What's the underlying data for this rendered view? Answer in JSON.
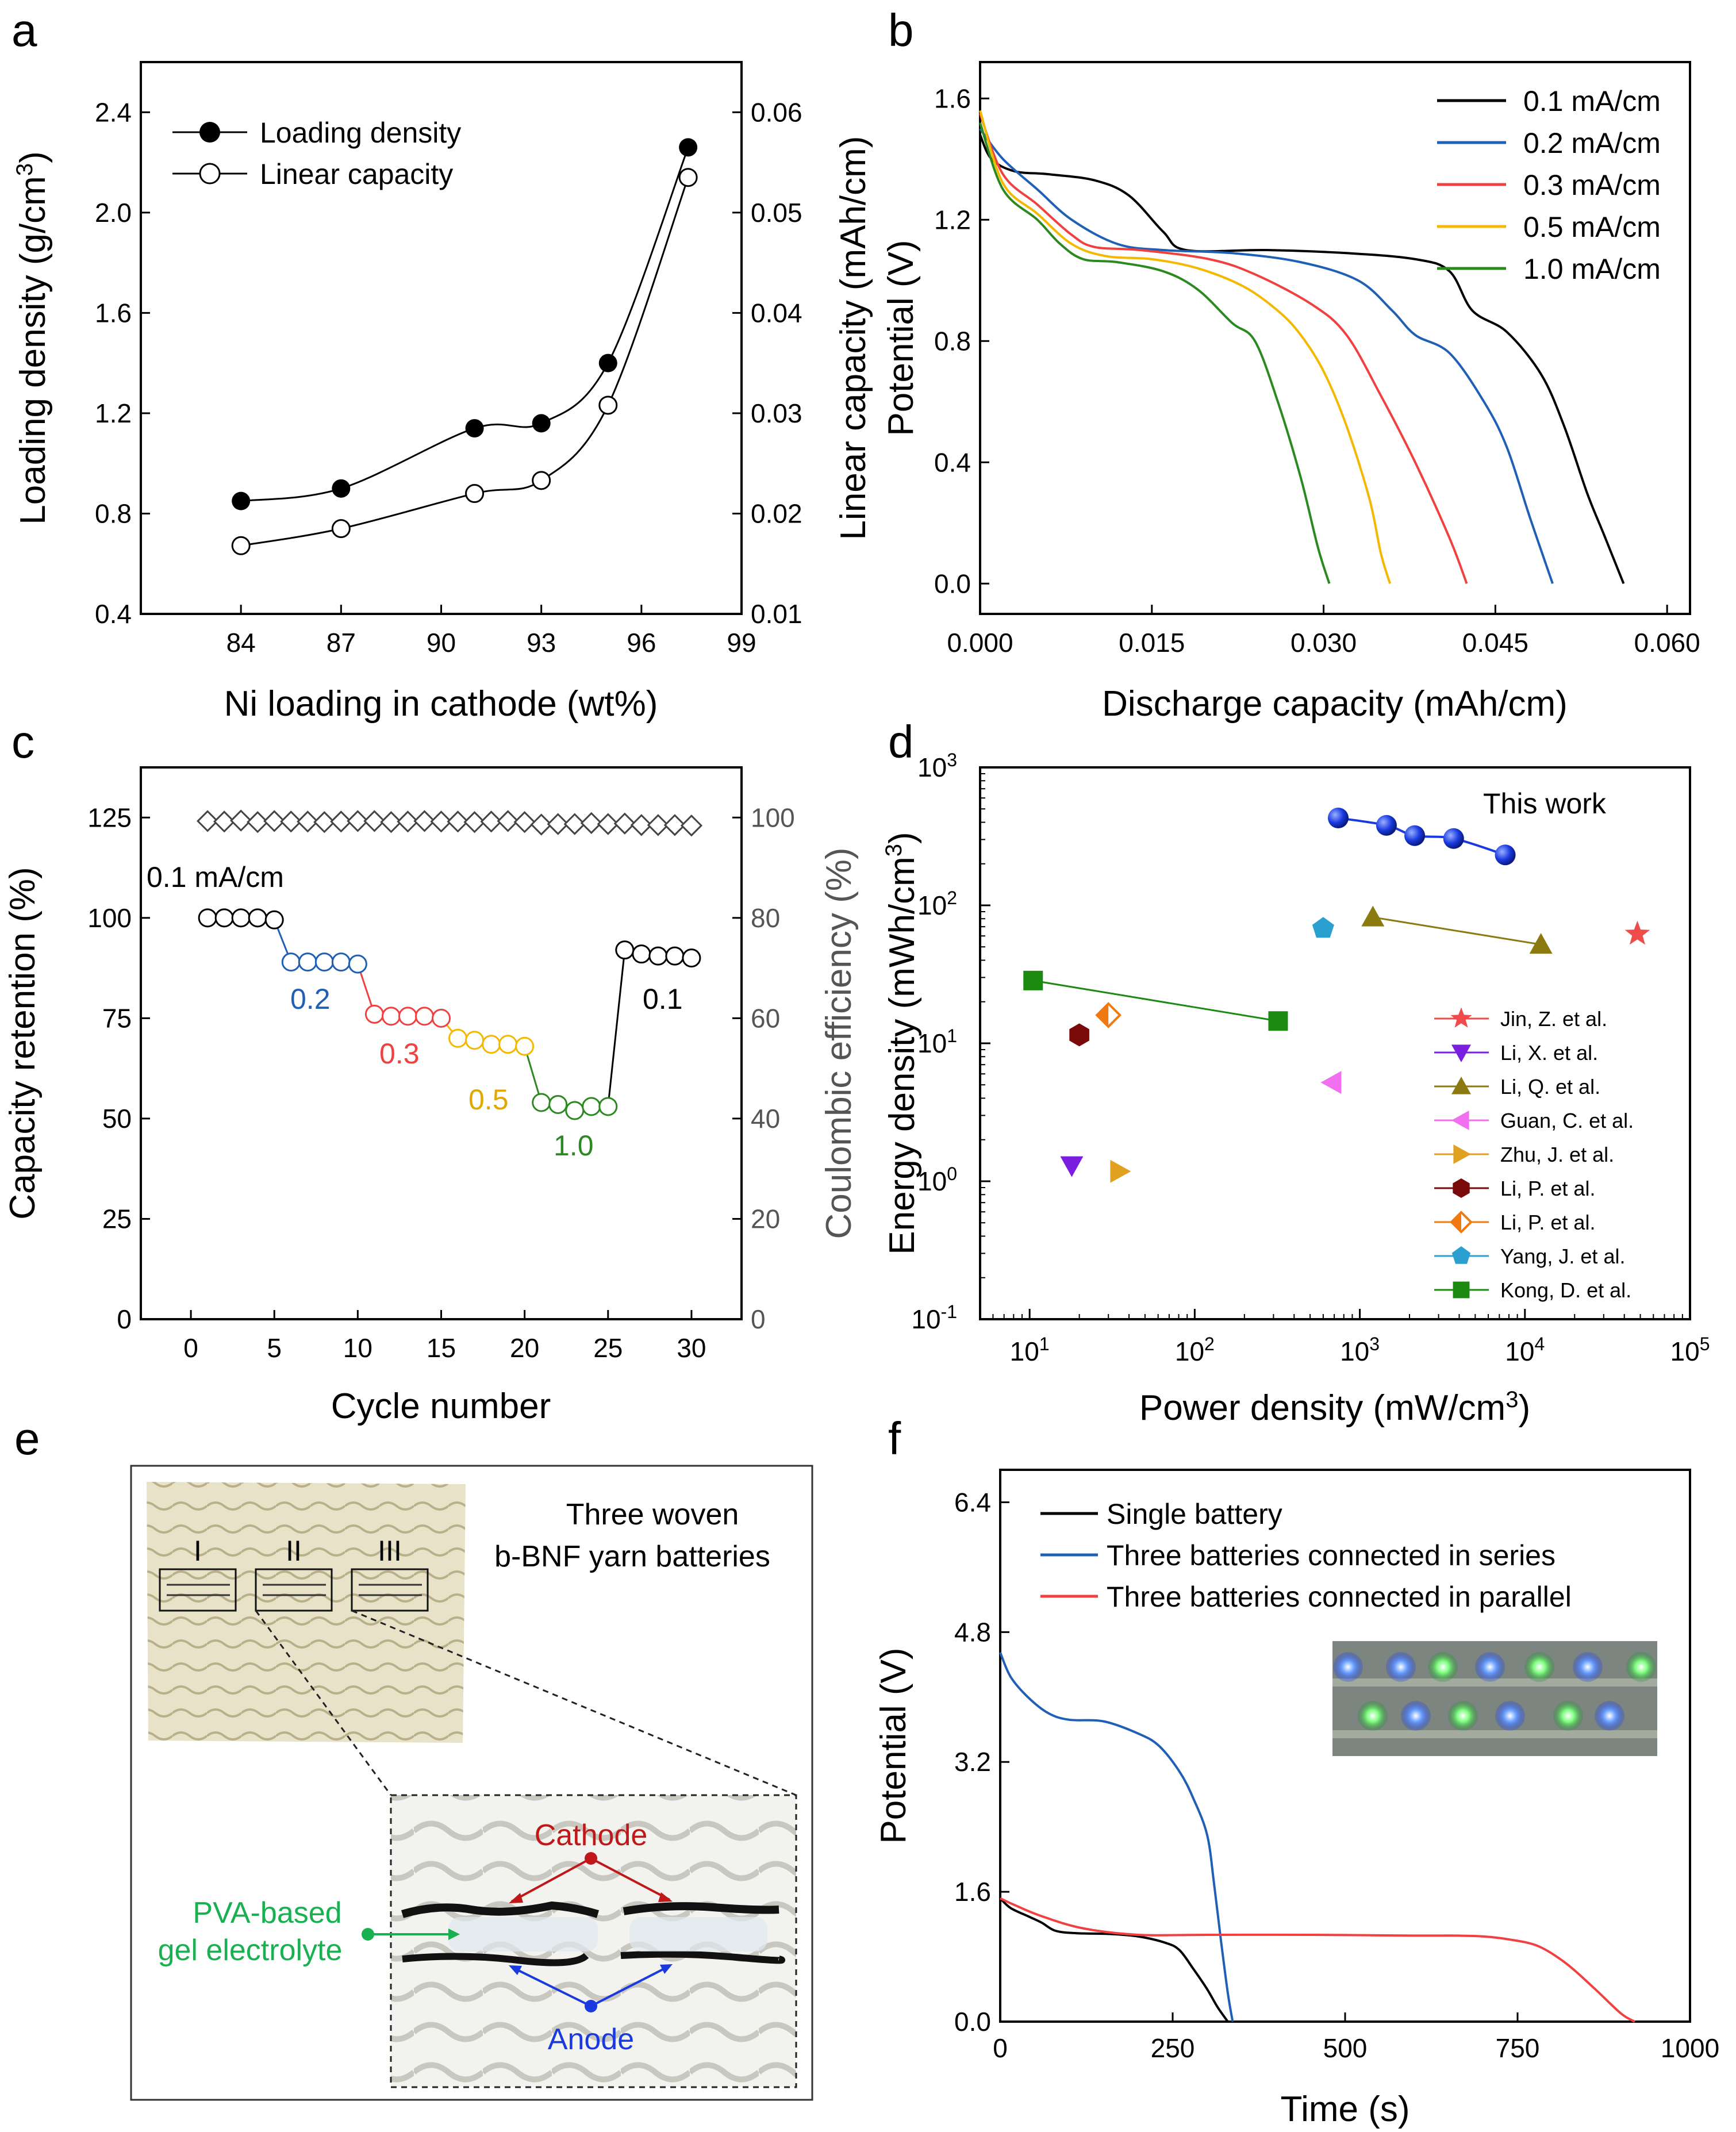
{
  "panels": {
    "a": "a",
    "b": "b",
    "c": "c",
    "d": "d",
    "e": "e",
    "f": "f"
  },
  "colors": {
    "black": "#000000",
    "blue": "#1f5fb5",
    "red": "#f04040",
    "orange": "#f5b800",
    "green": "#2a8a20",
    "gray": "#555555",
    "star_red": "#f04a4a",
    "purple": "#7a1fe0",
    "olive": "#8a7a10",
    "pink": "#f070f0",
    "gold": "#e0a020",
    "darkred": "#7a0a0a",
    "dorange": "#f07a10",
    "cyan": "#2aa0d0",
    "dgreen": "#1a8a10",
    "sphere": "#1a3ae0",
    "cathode": "#c01818",
    "anode": "#1a3ae0",
    "gel": "#18b050"
  },
  "chart_data": [
    {
      "id": "a",
      "type": "line",
      "xlabel": "Ni loading in cathode (wt%)",
      "ylabel": "Loading density (g/cm3)",
      "ylabel_right": "Linear capacity (mAh/cm)",
      "xlim": [
        81,
        99
      ],
      "ylim": [
        0.4,
        2.6
      ],
      "ylim_right": [
        0.01,
        0.065
      ],
      "xticks": [
        "84",
        "87",
        "90",
        "93",
        "96",
        "99"
      ],
      "yticks": [
        "0.4",
        "0.8",
        "1.2",
        "1.6",
        "2.0",
        "2.4"
      ],
      "yticks_right": [
        "0.01",
        "0.02",
        "0.03",
        "0.04",
        "0.05",
        "0.06"
      ],
      "series": [
        {
          "name": "Loading density",
          "axis": "left",
          "marker": "filled-circle",
          "x": [
            84,
            87,
            91,
            93,
            95,
            97.4
          ],
          "y": [
            0.85,
            0.9,
            1.14,
            1.16,
            1.4,
            2.26
          ]
        },
        {
          "name": "Linear capacity",
          "axis": "right",
          "marker": "open-circle",
          "x": [
            84,
            87,
            91,
            93,
            95,
            97.4
          ],
          "y": [
            0.0168,
            0.0185,
            0.022,
            0.0233,
            0.0308,
            0.0535
          ]
        }
      ]
    },
    {
      "id": "b",
      "type": "line",
      "xlabel": "Discharge capacity (mAh/cm)",
      "ylabel": "Potential (V)",
      "xlim": [
        0,
        0.062
      ],
      "ylim": [
        -0.1,
        1.72
      ],
      "xticks": [
        "0.000",
        "0.015",
        "0.030",
        "0.045",
        "0.060"
      ],
      "yticks": [
        "0.0",
        "0.4",
        "0.8",
        "1.2",
        "1.6"
      ],
      "series": [
        {
          "name": "0.1 mA/cm",
          "color": "#000000",
          "x": [
            0,
            0.001,
            0.003,
            0.006,
            0.01,
            0.013,
            0.016,
            0.018,
            0.025,
            0.032,
            0.038,
            0.041,
            0.043,
            0.046,
            0.049,
            0.051,
            0.053,
            0.0545,
            0.0562
          ],
          "y": [
            1.48,
            1.4,
            1.36,
            1.35,
            1.33,
            1.28,
            1.16,
            1.1,
            1.1,
            1.09,
            1.07,
            1.03,
            0.9,
            0.83,
            0.69,
            0.52,
            0.3,
            0.16,
            0.0
          ]
        },
        {
          "name": "0.2 mA/cm",
          "color": "#1f5fb5",
          "x": [
            0,
            0.002,
            0.005,
            0.008,
            0.012,
            0.016,
            0.022,
            0.028,
            0.033,
            0.036,
            0.038,
            0.041,
            0.044,
            0.046,
            0.048,
            0.05
          ],
          "y": [
            1.5,
            1.4,
            1.3,
            1.2,
            1.12,
            1.1,
            1.09,
            1.06,
            1.0,
            0.9,
            0.82,
            0.76,
            0.6,
            0.45,
            0.22,
            0.0
          ]
        },
        {
          "name": "0.3 mA/cm",
          "color": "#f04040",
          "x": [
            0,
            0.002,
            0.005,
            0.008,
            0.01,
            0.014,
            0.02,
            0.024,
            0.029,
            0.032,
            0.035,
            0.038,
            0.041,
            0.0425
          ],
          "y": [
            1.55,
            1.35,
            1.25,
            1.15,
            1.11,
            1.1,
            1.07,
            1.02,
            0.92,
            0.82,
            0.62,
            0.4,
            0.15,
            0.0
          ]
        },
        {
          "name": "0.5 mA/cm",
          "color": "#f5b800",
          "x": [
            0,
            0.002,
            0.005,
            0.008,
            0.011,
            0.015,
            0.019,
            0.023,
            0.026,
            0.028,
            0.03,
            0.032,
            0.034,
            0.035,
            0.0358
          ],
          "y": [
            1.56,
            1.32,
            1.22,
            1.12,
            1.08,
            1.07,
            1.04,
            0.98,
            0.9,
            0.82,
            0.7,
            0.52,
            0.28,
            0.1,
            0.0
          ]
        },
        {
          "name": "1.0 mA/cm",
          "color": "#2a8a20",
          "x": [
            0,
            0.002,
            0.005,
            0.007,
            0.009,
            0.012,
            0.016,
            0.019,
            0.022,
            0.024,
            0.026,
            0.028,
            0.0295,
            0.0305
          ],
          "y": [
            1.52,
            1.3,
            1.2,
            1.12,
            1.07,
            1.06,
            1.03,
            0.97,
            0.86,
            0.8,
            0.6,
            0.35,
            0.12,
            0.0
          ]
        }
      ]
    },
    {
      "id": "c",
      "type": "scatter",
      "xlabel": "Cycle number",
      "ylabel": "Capacity retention (%)",
      "ylabel_right": "Coulombic efficiency (%)",
      "xlim": [
        -3,
        33
      ],
      "ylim": [
        0,
        137.5
      ],
      "ylim_right": [
        0,
        110
      ],
      "xticks": [
        "0",
        "5",
        "10",
        "15",
        "20",
        "25",
        "30"
      ],
      "yticks": [
        "0",
        "25",
        "50",
        "75",
        "100",
        "125"
      ],
      "yticks_right": [
        "0",
        "20",
        "40",
        "60",
        "80",
        "100"
      ],
      "retention": {
        "cycles": [
          1,
          2,
          3,
          4,
          5,
          6,
          7,
          8,
          9,
          10,
          11,
          12,
          13,
          14,
          15,
          16,
          17,
          18,
          19,
          20,
          21,
          22,
          23,
          24,
          25,
          26,
          27,
          28,
          29,
          30
        ],
        "values": [
          100,
          100,
          100,
          100,
          99.5,
          89,
          89,
          89,
          89,
          88.5,
          76,
          75.5,
          75.5,
          75.5,
          75,
          70,
          69.5,
          68.5,
          68.5,
          68,
          54,
          53.5,
          52,
          53,
          53,
          92,
          91,
          90.5,
          90.5,
          90
        ],
        "colors": [
          "#000000",
          "#000000",
          "#000000",
          "#000000",
          "#000000",
          "#1f5fb5",
          "#1f5fb5",
          "#1f5fb5",
          "#1f5fb5",
          "#1f5fb5",
          "#f04040",
          "#f04040",
          "#f04040",
          "#f04040",
          "#f04040",
          "#f5b800",
          "#f5b800",
          "#f5b800",
          "#f5b800",
          "#f5b800",
          "#2a8a20",
          "#2a8a20",
          "#2a8a20",
          "#2a8a20",
          "#2a8a20",
          "#000000",
          "#000000",
          "#000000",
          "#000000",
          "#000000"
        ]
      },
      "efficiency": {
        "cycles": [
          1,
          2,
          3,
          4,
          5,
          6,
          7,
          8,
          9,
          10,
          11,
          12,
          13,
          14,
          15,
          16,
          17,
          18,
          19,
          20,
          21,
          22,
          23,
          24,
          25,
          26,
          27,
          28,
          29,
          30
        ],
        "values": [
          99.3,
          99.2,
          99.4,
          99.1,
          99.3,
          99.2,
          99.2,
          99.1,
          99.2,
          99.3,
          99.3,
          99.1,
          99.2,
          99.3,
          99.2,
          99.2,
          99.1,
          99.2,
          99.3,
          99.1,
          98.6,
          98.7,
          98.7,
          98.9,
          98.7,
          98.8,
          98.5,
          98.5,
          98.5,
          98.4
        ]
      },
      "annotations": [
        {
          "text": "0.1 mA/cm",
          "color": "#000000"
        },
        {
          "text": "0.2",
          "color": "#1f5fb5"
        },
        {
          "text": "0.3",
          "color": "#f04040"
        },
        {
          "text": "0.5",
          "color": "#f5b800"
        },
        {
          "text": "1.0",
          "color": "#2a8a20"
        },
        {
          "text": "0.1",
          "color": "#000000"
        }
      ]
    },
    {
      "id": "d",
      "type": "scatter",
      "scale": "log-log",
      "xlabel": "Power density (mW/cm3)",
      "ylabel": "Energy density (mWh/cm3)",
      "xlim_log10": [
        0.7,
        5
      ],
      "ylim_log10": [
        -1,
        3
      ],
      "xticks": [
        "10",
        "2",
        "10",
        "3",
        "10",
        "4",
        "10",
        "5"
      ],
      "this_work": {
        "label": "This work",
        "x": [
          740,
          1450,
          2150,
          3700,
          7600
        ],
        "y": [
          430,
          380,
          320,
          305,
          232
        ]
      },
      "references": [
        {
          "name": "Jin, Z. et al.",
          "marker": "star",
          "color": "#f04a4a",
          "x": [
            48000
          ],
          "y": [
            62
          ]
        },
        {
          "name": "Li, X. et al.",
          "marker": "triangle-down",
          "color": "#7a1fe0",
          "x": [
            18
          ],
          "y": [
            1.3
          ]
        },
        {
          "name": "Li, Q. et al.",
          "marker": "triangle-up",
          "color": "#8a7a10",
          "x": [
            1200,
            12500
          ],
          "y": [
            82,
            52
          ]
        },
        {
          "name": "Guan, C. et al.",
          "marker": "triangle-left",
          "color": "#f070f0",
          "x": [
            680
          ],
          "y": [
            5.2
          ]
        },
        {
          "name": "Zhu, J. et al.",
          "marker": "triangle-right",
          "color": "#e0a020",
          "x": [
            35
          ],
          "y": [
            1.18
          ]
        },
        {
          "name": "Li, P. et al.",
          "marker": "hexagon",
          "color": "#7a0a0a",
          "x": [
            20
          ],
          "y": [
            11.5
          ]
        },
        {
          "name": "Li, P. et al.",
          "marker": "diamond-half",
          "color": "#f07a10",
          "x": [
            30
          ],
          "y": [
            16
          ]
        },
        {
          "name": "Yang, J. et al.",
          "marker": "pentagon",
          "color": "#2aa0d0",
          "x": [
            600
          ],
          "y": [
            68
          ]
        },
        {
          "name": "Kong, D. et al.",
          "marker": "square",
          "color": "#1a8a10",
          "x": [
            10.5,
            320
          ],
          "y": [
            28.5,
            14.5
          ]
        }
      ]
    },
    {
      "id": "f",
      "type": "line",
      "xlabel": "Time (s)",
      "ylabel": "Potential (V)",
      "xlim": [
        0,
        1000
      ],
      "ylim": [
        0,
        6.8
      ],
      "xticks": [
        "0",
        "250",
        "500",
        "750",
        "1000"
      ],
      "yticks": [
        "0.0",
        "1.6",
        "3.2",
        "4.8",
        "6.4"
      ],
      "series": [
        {
          "name": "Single battery",
          "color": "#000000",
          "x": [
            0,
            15,
            40,
            60,
            80,
            110,
            160,
            200,
            240,
            260,
            280,
            300,
            315,
            330
          ],
          "y": [
            1.52,
            1.4,
            1.3,
            1.22,
            1.12,
            1.09,
            1.08,
            1.05,
            0.97,
            0.88,
            0.65,
            0.4,
            0.18,
            0.0
          ]
        },
        {
          "name": "Three batteries connected in series",
          "color": "#1f5fb5",
          "x": [
            0,
            15,
            40,
            70,
            100,
            150,
            200,
            230,
            260,
            280,
            300,
            310,
            320,
            330,
            337
          ],
          "y": [
            4.55,
            4.25,
            4.0,
            3.8,
            3.72,
            3.7,
            3.55,
            3.4,
            3.08,
            2.75,
            2.3,
            1.7,
            1.0,
            0.35,
            0.0
          ]
        },
        {
          "name": "Three batteries connected in parallel",
          "color": "#f04040",
          "x": [
            0,
            20,
            60,
            120,
            200,
            300,
            450,
            600,
            660,
            700,
            740,
            780,
            820,
            860,
            900,
            920
          ],
          "y": [
            1.52,
            1.44,
            1.3,
            1.15,
            1.07,
            1.07,
            1.07,
            1.06,
            1.06,
            1.05,
            1.01,
            0.93,
            0.72,
            0.42,
            0.1,
            0.0
          ]
        }
      ]
    }
  ],
  "panel_e": {
    "title_line1": "Three woven",
    "title_line2": "b-BNF yarn batteries",
    "roman": [
      "I",
      "II",
      "III"
    ],
    "cathode": "Cathode",
    "anode": "Anode",
    "gel_line1": "PVA-based",
    "gel_line2": "gel electrolyte"
  }
}
